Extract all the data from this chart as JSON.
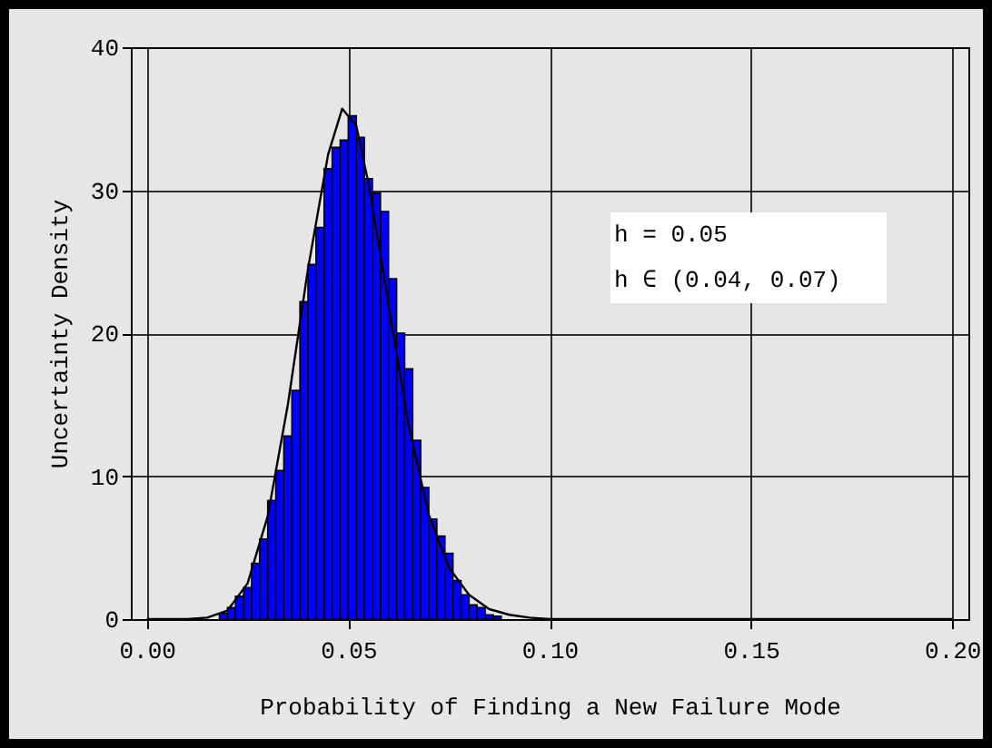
{
  "chart_data": {
    "type": "histogram",
    "xlabel": "Probability of Finding a New Failure Mode",
    "ylabel": "Uncertainty Density",
    "annotations": [
      "h = 0.05",
      "h ∈ (0.04, 0.07)"
    ],
    "xlim": [
      -0.004,
      0.204
    ],
    "xticks": [
      {
        "value": 0,
        "label": "0.00"
      },
      0.05,
      {
        "value": 0.1,
        "label": "0.10"
      },
      0.15,
      {
        "value": 0.2,
        "label": "0.20"
      }
    ],
    "ylim": [
      0,
      40
    ],
    "yticks": [
      0,
      10,
      20,
      30,
      40
    ],
    "grid": true,
    "series": [
      {
        "type": "histogram",
        "color": "#0000ff",
        "bins": [
          0.018,
          0.02,
          0.022,
          0.024,
          0.026,
          0.028,
          0.03,
          0.032,
          0.034,
          0.036,
          0.038,
          0.04,
          0.042,
          0.044,
          0.046,
          0.048,
          0.05,
          0.052,
          0.054,
          0.056,
          0.058,
          0.06,
          0.062,
          0.064,
          0.066,
          0.068,
          0.07,
          0.072,
          0.074,
          0.076,
          0.078,
          0.08,
          0.082,
          0.084,
          0.086,
          0.088
        ],
        "values": [
          0.4,
          0.8,
          1.6,
          2.2,
          3.9,
          5.6,
          8.3,
          10.4,
          12.8,
          16.0,
          22.2,
          24.8,
          27.4,
          31.5,
          33.0,
          33.5,
          35.2,
          33.7,
          30.8,
          29.8,
          28.5,
          23.8,
          20.0,
          17.5,
          12.5,
          9.2,
          7.0,
          5.8,
          4.6,
          2.7,
          1.7,
          1.0,
          0.8,
          0.3,
          0.2
        ]
      },
      {
        "type": "line",
        "color": "#000000",
        "x": [
          0,
          0.01,
          0.015,
          0.02,
          0.025,
          0.03,
          0.035,
          0.04,
          0.045,
          0.0485,
          0.052,
          0.055,
          0.06,
          0.065,
          0.07,
          0.075,
          0.08,
          0.085,
          0.09,
          0.095,
          0.1,
          0.2
        ],
        "values": [
          0,
          0,
          0.1,
          0.6,
          2.5,
          7.2,
          15,
          24.5,
          32.5,
          35.7,
          34.5,
          30.5,
          22,
          13.5,
          7.3,
          3.6,
          1.7,
          0.7,
          0.3,
          0.1,
          0,
          0
        ]
      }
    ]
  }
}
